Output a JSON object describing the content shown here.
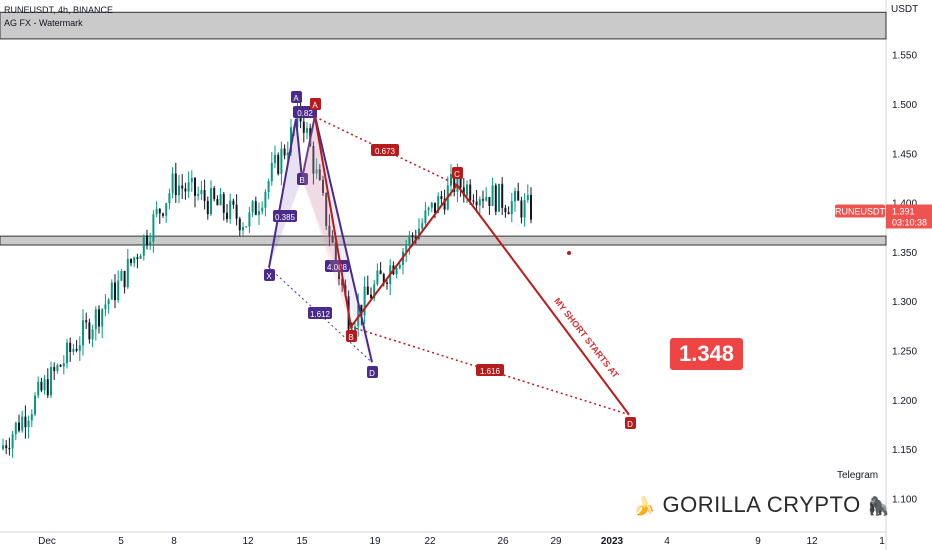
{
  "header": {
    "symbol_line": "RUNEUSDT, 4h, BINANCE",
    "indicator_line": "AG FX - Watermark"
  },
  "price_axis": {
    "currency": "USDT",
    "ticks": [
      "1.550",
      "1.500",
      "1.450",
      "1.400",
      "1.350",
      "1.300",
      "1.250",
      "1.200",
      "1.150",
      "1.100"
    ],
    "ticker_label": "RUNEUSDT",
    "last_price": "1.391",
    "countdown": "03:10:38"
  },
  "time_axis": {
    "ticks": [
      "Dec",
      "5",
      "8",
      "12",
      "15",
      "19",
      "22",
      "26",
      "29",
      "2023",
      "4",
      "9",
      "12",
      "1"
    ]
  },
  "annotations": {
    "short_note": "MY SHORT STARTS AT",
    "big_price": "1.348",
    "telegram": "Telegram",
    "brand": "GORILLA CRYPTO",
    "brand_icon_left": "banana-icon",
    "brand_icon_right": "gorilla-icon"
  },
  "colors": {
    "bull": "#089981",
    "bear": "#131722",
    "red_pattern": "#b71c1c",
    "purple_pattern": "#4a2a8a",
    "zone_fill": "#9e9e9e",
    "price_tag": "#ef5350"
  },
  "chart_data": {
    "type": "candlestick",
    "y_axis": {
      "range": [
        1.08,
        1.6
      ],
      "unit": "USDT"
    },
    "last_price": 1.391,
    "zones": [
      {
        "top": 1.593,
        "bottom": 1.566
      },
      {
        "top": 1.366,
        "bottom": 1.357
      }
    ],
    "price_path": [
      {
        "x": "Dec",
        "y": 1.15
      },
      {
        "x": "5",
        "y": 1.32
      },
      {
        "x": "8",
        "y": 1.42
      },
      {
        "x": "12",
        "y": 1.38
      },
      {
        "x": "15",
        "y": 1.49
      },
      {
        "x": "18",
        "y": 1.28
      },
      {
        "x": "22",
        "y": 1.39
      },
      {
        "x": "23",
        "y": 1.42
      },
      {
        "x": "27",
        "y": 1.391
      }
    ],
    "red_pattern": {
      "points": [
        {
          "label": "A",
          "y": 1.487
        },
        {
          "label": "B",
          "y": 1.274
        },
        {
          "label": "C",
          "y": 1.418
        },
        {
          "label": "D",
          "y": 1.185
        }
      ],
      "ratios": [
        "0.673",
        "1.616"
      ]
    },
    "purple_pattern": {
      "points": [
        {
          "label": "X",
          "y": 1.334
        },
        {
          "label": "A",
          "y": 1.485
        },
        {
          "label": "B",
          "y": 1.424
        },
        {
          "label": "C",
          "y": 1.488
        },
        {
          "label": "D",
          "y": 1.238
        }
      ],
      "ratios": [
        "0.82",
        "0.385",
        "4.088",
        "1.612"
      ]
    }
  }
}
